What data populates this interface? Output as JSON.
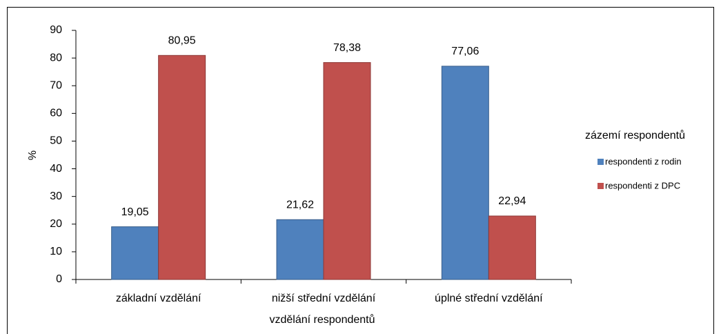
{
  "chart_data": {
    "type": "bar",
    "categories": [
      "základní vzdělání",
      "nižší střední vzdělání",
      "úplné střední vzdělání"
    ],
    "x_label": "vzdělání  respondentů",
    "y_label": "%",
    "legend_title": "zázemí respondentů",
    "legend_position": "right",
    "series": [
      {
        "name": "respondenti z rodin",
        "color": "#4f81bd",
        "values": [
          19.05,
          21.62,
          77.06
        ],
        "value_labels": [
          "19,05",
          "21,62",
          "77,06"
        ]
      },
      {
        "name": "respondenti z DPC",
        "color": "#c0504d",
        "values": [
          80.95,
          78.38,
          22.94
        ],
        "value_labels": [
          "80,95",
          "78,38",
          "22,94"
        ]
      }
    ],
    "ylim": [
      0,
      90
    ],
    "yticks": [
      0,
      10,
      20,
      30,
      40,
      50,
      60,
      70,
      80,
      90
    ]
  }
}
